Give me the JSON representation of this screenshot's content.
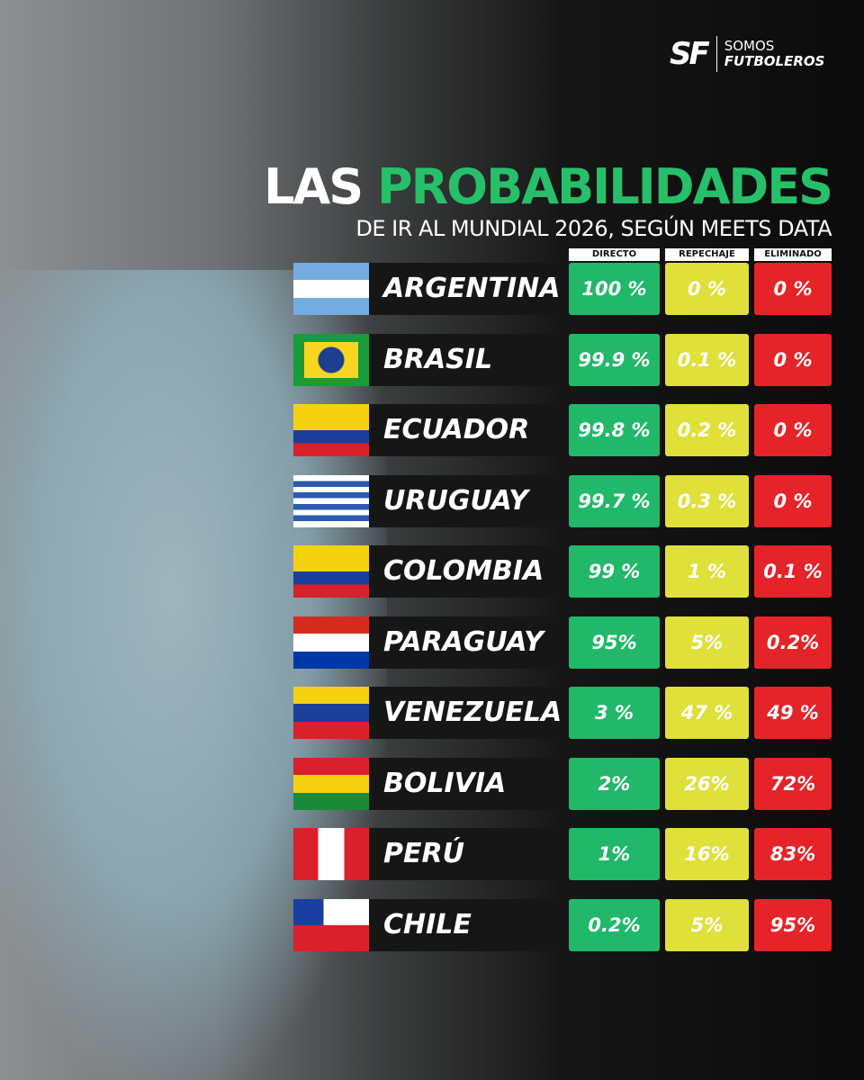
{
  "brand": {
    "line1": "SOMOS",
    "line2": "FUTBOLEROS"
  },
  "header": {
    "title_white": "LAS",
    "title_green": "PROBABILIDADES",
    "subtitle": "DE IR AL MUNDIAL 2026, SEGÚN MEETS DATA"
  },
  "table": {
    "columns": [
      "DIRECTO",
      "REPECHAJE",
      "ELIMINADO"
    ],
    "rows": [
      [
        "ARGENTINA",
        "100 %",
        "0 %",
        "0 %"
      ],
      [
        "BRASIL",
        "99.9 %",
        "0.1 %",
        "0 %"
      ],
      [
        "ECUADOR",
        "99.8 %",
        "0.2 %",
        "0 %"
      ],
      [
        "URUGUAY",
        "99.7 %",
        "0.3 %",
        "0 %"
      ],
      [
        "COLOMBIA",
        "99 %",
        "1 %",
        "0.1 %"
      ],
      [
        "PARAGUAY",
        "95%",
        "5%",
        "0.2%"
      ],
      [
        "VENEZUELA",
        "3 %",
        "47 %",
        "49 %"
      ],
      [
        "BOLIVIA",
        "2%",
        "26%",
        "72%"
      ],
      [
        "PERÚ",
        "1%",
        "16%",
        "83%"
      ],
      [
        "CHILE",
        "0.2%",
        "5%",
        "95%"
      ]
    ]
  }
}
